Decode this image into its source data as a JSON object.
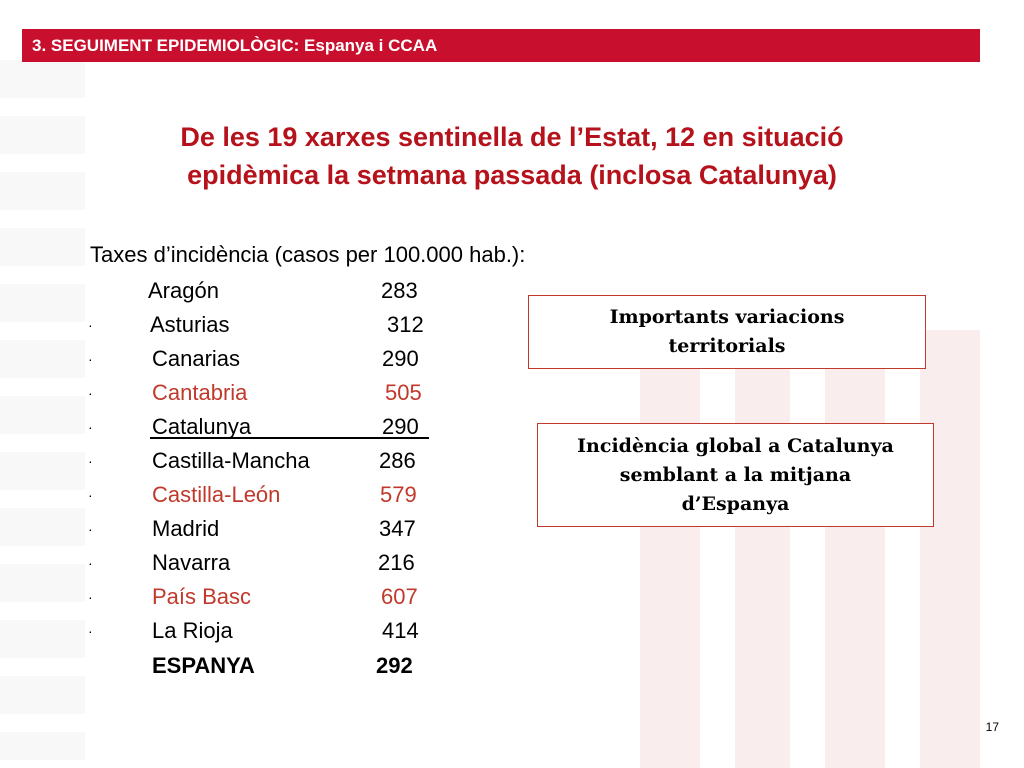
{
  "header": {
    "title": "3. SEGUIMENT EPIDEMIOLÒGIC: Espanya i CCAA"
  },
  "headline": {
    "line1": "De les 19 xarxes sentinella de l’Estat, 12 en situació",
    "line2": "epidèmica la setmana passada (inclosa Catalunya)"
  },
  "rates": {
    "title": "Taxes d’incidència (casos per 100.000 hab.):",
    "bullet": "·",
    "rows": [
      {
        "name": "Aragón",
        "value": "283"
      },
      {
        "name": "Asturias",
        "value": "312"
      },
      {
        "name": "Canarias",
        "value": "290"
      },
      {
        "name": "Cantabria",
        "value": "505"
      },
      {
        "name": "Catalunya",
        "value": "290"
      },
      {
        "name": "Castilla-Mancha",
        "value": "286"
      },
      {
        "name": "Castilla-León",
        "value": "579"
      },
      {
        "name": "Madrid",
        "value": "347"
      },
      {
        "name": "Navarra",
        "value": "216"
      },
      {
        "name": "País Basc",
        "value": "607"
      },
      {
        "name": "La Rioja",
        "value": "414"
      },
      {
        "name": "ESPANYA",
        "value": "292"
      }
    ]
  },
  "callouts": {
    "variations": "Importants variacions territorials",
    "global": "Incidència global a Catalunya semblant a la mitjana d’Espanya"
  },
  "colors": {
    "brand_red": "#c8102e",
    "highlight": "#c0392b"
  },
  "page_number": "17"
}
